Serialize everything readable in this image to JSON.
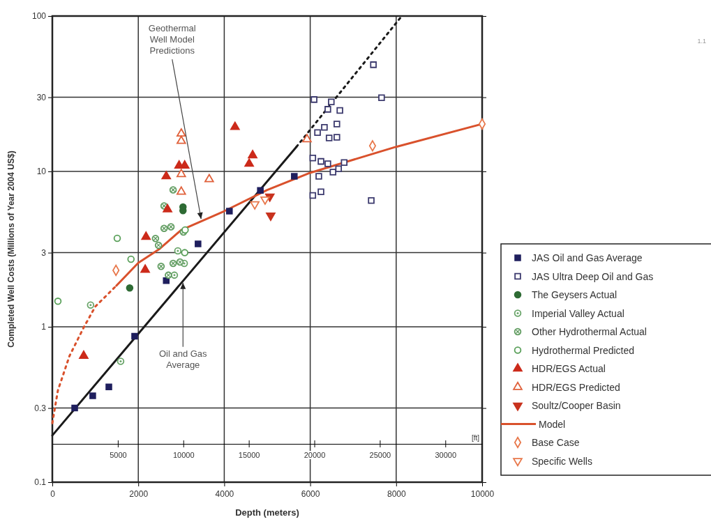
{
  "chart_data": {
    "type": "scatter",
    "xlabel": "Depth (meters)",
    "ylabel": "Completed Well Costs (Millions of Year 2004 US$)",
    "x2label": "[ft]",
    "xlim": [
      0,
      10000
    ],
    "xticks": [
      0,
      2000,
      4000,
      6000,
      8000,
      10000
    ],
    "x2lim": [
      0,
      32808
    ],
    "x2ticks": [
      5000,
      10000,
      15000,
      20000,
      25000,
      30000
    ],
    "ylim": [
      0.1,
      100
    ],
    "yticks": [
      0.1,
      0.3,
      1,
      3,
      10,
      30,
      100
    ],
    "log": "y",
    "grid": true,
    "legend": "right",
    "annotations": [
      "1.1",
      {
        "text": "Geothermal Well Model Predictions",
        "x": 3470,
        "y": 4.8
      },
      {
        "text": "Oil and Gas Average",
        "x": 3040,
        "y": 1.98
      }
    ],
    "series": [
      {
        "type": "line",
        "color": "#1a1a1a",
        "line_style": "solid",
        "x": [
          0,
          5680
        ],
        "values": [
          0.2,
          14.4
        ]
      },
      {
        "type": "line",
        "color": "#1a1a1a",
        "line_style": "dotted",
        "x": [
          5680,
          8130
        ],
        "values": [
          14.4,
          100
        ]
      },
      {
        "type": "line",
        "color": "#d9512c",
        "line_style": "dotted",
        "x": [
          0,
          130,
          400,
          730,
          1000,
          1490
        ],
        "values": [
          0.24,
          0.39,
          0.65,
          0.99,
          1.35,
          1.84
        ]
      },
      {
        "name": "JAS Oil and Gas Average",
        "color": "#1f1f5e",
        "marker": "square",
        "x": [
          520,
          940,
          1315,
          1915,
          2650,
          3390,
          4120,
          4840,
          5630
        ],
        "values": [
          0.3,
          0.36,
          0.41,
          0.87,
          1.98,
          3.42,
          5.55,
          7.55,
          9.3
        ]
      },
      {
        "name": "JAS Ultra Deep Oil and Gas",
        "color": "#3c3a6e",
        "marker": "square-open",
        "x": [
          6090,
          6490,
          6410,
          6690,
          6620,
          6330,
          6170,
          6620,
          6440,
          7470,
          7660,
          6060,
          6250,
          6410,
          6790,
          6530,
          6660,
          6200,
          6250,
          6060,
          7420
        ],
        "values": [
          29,
          28,
          25.1,
          24.7,
          20.2,
          19.2,
          17.8,
          16.6,
          16.4,
          48.6,
          29.8,
          12.2,
          11.6,
          11.2,
          11.4,
          9.9,
          10.4,
          9.3,
          7.4,
          7.0,
          6.5
        ]
      },
      {
        "name": "The Geysers Actual",
        "color": "#2e6b34",
        "marker": "circle",
        "x": [
          3040,
          3040,
          1800
        ],
        "values": [
          5.6,
          5.9,
          1.78
        ]
      },
      {
        "name": "Imperial Valley Actual",
        "color": "#6aa56a",
        "marker": "circle-dot",
        "x": [
          1590,
          890,
          2840,
          2920,
          3070
        ],
        "values": [
          0.6,
          1.38,
          2.15,
          3.08,
          2.56
        ]
      },
      {
        "name": "Other Hydrothermal Actual",
        "color": "#5d9a5d",
        "marker": "circle-cross",
        "x": [
          2600,
          2810,
          2760,
          2600,
          2400,
          3050,
          2810,
          2970,
          2470,
          2530,
          2700
        ],
        "values": [
          6.0,
          7.6,
          4.4,
          4.3,
          3.7,
          4.07,
          2.56,
          2.61,
          3.35,
          2.45,
          2.15
        ]
      },
      {
        "name": "Hydrothermal Predicted",
        "color": "#5aa05a",
        "marker": "circle-open",
        "x": [
          130,
          1510,
          1830,
          3080,
          3090
        ],
        "values": [
          1.46,
          3.71,
          2.72,
          3.0,
          4.2
        ]
      },
      {
        "name": "HDR/EGS Actual",
        "color": "#cc2a1a",
        "marker": "triangle",
        "x": [
          4250,
          4660,
          4580,
          2650,
          2950,
          3080,
          2680,
          2180,
          2160,
          730
        ],
        "values": [
          19.3,
          12.7,
          11.2,
          9.3,
          10.9,
          10.9,
          5.7,
          3.79,
          2.33,
          0.65
        ]
      },
      {
        "name": "HDR/EGS Predicted",
        "color": "#e0603a",
        "marker": "triangle-open",
        "x": [
          3000,
          3000,
          3000,
          3650,
          3000,
          5925
        ],
        "values": [
          17.5,
          15.7,
          9.6,
          8.9,
          7.4,
          16.1
        ]
      },
      {
        "name": "Soultz/Cooper Basin",
        "color": "#c8321e",
        "marker": "triangle-down",
        "x": [
          5080,
          5060
        ],
        "values": [
          5.2,
          6.9
        ]
      },
      {
        "name": "Model",
        "type": "line",
        "color": "#d9512c",
        "line_style": "solid",
        "x": [
          1490,
          2000,
          2500,
          3000,
          4000,
          5000,
          6000,
          8000,
          10000
        ],
        "values": [
          1.84,
          2.58,
          3.18,
          4.2,
          5.55,
          7.6,
          9.8,
          14.4,
          20.2
        ]
      },
      {
        "name": "Base Case",
        "color": "#e8774a",
        "marker": "diamond-open",
        "x": [
          1480,
          7450,
          10000
        ],
        "values": [
          2.31,
          14.6,
          20.2
        ]
      },
      {
        "name": "Specific Wells",
        "color": "#e8774a",
        "marker": "triangle-down-open",
        "x": [
          4710,
          4950
        ],
        "values": [
          6.15,
          6.6
        ]
      }
    ]
  }
}
